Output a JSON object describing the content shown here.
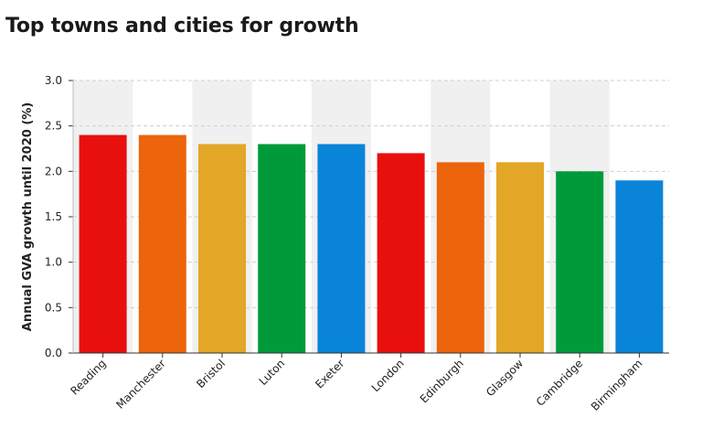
{
  "chart_data": {
    "type": "bar",
    "title": "Top towns and cities for growth",
    "ylabel": "Annual GVA growth until 2020 (%)",
    "xlabel": "",
    "ylim": [
      0,
      3.0
    ],
    "yticks": [
      "0.0",
      "0.5",
      "1.0",
      "1.5",
      "2.0",
      "2.5",
      "3.0"
    ],
    "grid": "dashed horizontal",
    "categories": [
      "Reading",
      "Manchester",
      "Bristol",
      "Luton",
      "Exeter",
      "London",
      "Edinburgh",
      "Glasgow",
      "Cambridge",
      "Birmingham"
    ],
    "values": [
      2.4,
      2.4,
      2.3,
      2.3,
      2.3,
      2.2,
      2.1,
      2.1,
      2.0,
      1.9
    ],
    "colors": [
      "#e8100f",
      "#ec640c",
      "#e3a626",
      "#009a3b",
      "#0a84d9",
      "#e8100f",
      "#ec640c",
      "#e3a626",
      "#009a3b",
      "#0a84d9"
    ],
    "band_color": "#f0f0f0"
  }
}
